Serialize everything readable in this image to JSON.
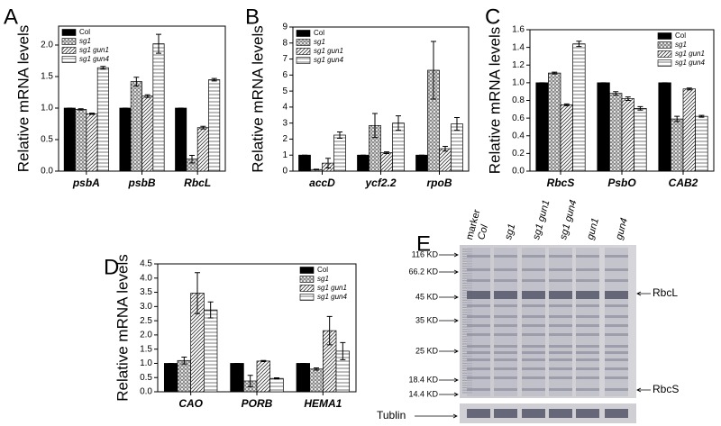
{
  "chart_data": [
    {
      "type": "bar",
      "panel_label": "A",
      "ylabel": "Relative mRNA levels",
      "legend": "upper left",
      "categories": [
        "psbA",
        "psbB",
        "RbcL"
      ],
      "series": [
        {
          "name": "Col",
          "color": "#000000",
          "pattern": "solid",
          "values": [
            1.0,
            1.0,
            1.0
          ],
          "errors": [
            0,
            0,
            0
          ]
        },
        {
          "name": "sg1",
          "color": "#7f7f7f",
          "pattern": "crosshatch",
          "values": [
            0.98,
            1.42,
            0.19
          ],
          "errors": [
            0.01,
            0.07,
            0.06
          ]
        },
        {
          "name": "sg1 gun1",
          "color": "#333333",
          "pattern": "diagonal",
          "values": [
            0.91,
            1.19,
            0.69
          ],
          "errors": [
            0.01,
            0.02,
            0.02
          ]
        },
        {
          "name": "sg1 gun4",
          "color": "#555555",
          "pattern": "horizontal",
          "values": [
            1.64,
            2.02,
            1.45
          ],
          "errors": [
            0.02,
            0.15,
            0.02
          ]
        }
      ],
      "ylim": [
        0,
        2.3
      ],
      "yticks": [
        {
          "value": 0,
          "label": "0.0"
        },
        {
          "value": 0.5,
          "label": "0.5"
        },
        {
          "value": 1,
          "label": "1.0"
        },
        {
          "value": 1.5,
          "label": "1.5"
        },
        {
          "value": 2,
          "label": "2.0"
        }
      ]
    },
    {
      "type": "bar",
      "panel_label": "B",
      "ylabel": "Relative mRNA levels",
      "legend": "upper left",
      "categories": [
        "accD",
        "ycf2.2",
        "rpoB"
      ],
      "series": [
        {
          "name": "Col",
          "color": "#000000",
          "pattern": "solid",
          "values": [
            1.0,
            1.0,
            1.0
          ],
          "errors": [
            0,
            0,
            0
          ]
        },
        {
          "name": "sg1",
          "color": "#7f7f7f",
          "pattern": "crosshatch",
          "values": [
            0.1,
            2.85,
            6.3
          ],
          "errors": [
            0.02,
            0.75,
            1.8
          ]
        },
        {
          "name": "sg1 gun1",
          "color": "#333333",
          "pattern": "diagonal",
          "values": [
            0.5,
            1.15,
            1.4
          ],
          "errors": [
            0.3,
            0.05,
            0.15
          ]
        },
        {
          "name": "sg1 gun4",
          "color": "#555555",
          "pattern": "horizontal",
          "values": [
            2.25,
            3.0,
            2.95
          ],
          "errors": [
            0.2,
            0.45,
            0.4
          ]
        }
      ],
      "ylim": [
        0,
        9
      ],
      "yticks": [
        0,
        1,
        2,
        3,
        4,
        5,
        6,
        7,
        8,
        9
      ]
    },
    {
      "type": "bar",
      "panel_label": "C",
      "ylabel": "Relative mRNA levels",
      "legend": "upper right",
      "categories": [
        "RbcS",
        "PsbO",
        "CAB2"
      ],
      "series": [
        {
          "name": "Col",
          "color": "#000000",
          "pattern": "solid",
          "values": [
            1.0,
            1.0,
            1.0
          ],
          "errors": [
            0,
            0,
            0
          ]
        },
        {
          "name": "sg1",
          "color": "#7f7f7f",
          "pattern": "crosshatch",
          "values": [
            1.11,
            0.88,
            0.59
          ],
          "errors": [
            0.01,
            0.02,
            0.03
          ]
        },
        {
          "name": "sg1 gun1",
          "color": "#333333",
          "pattern": "diagonal",
          "values": [
            0.75,
            0.82,
            0.93
          ],
          "errors": [
            0.01,
            0.02,
            0.01
          ]
        },
        {
          "name": "sg1 gun4",
          "color": "#555555",
          "pattern": "horizontal",
          "values": [
            1.44,
            0.71,
            0.62
          ],
          "errors": [
            0.03,
            0.02,
            0.01
          ]
        }
      ],
      "ylim": [
        0,
        1.6
      ],
      "yticks": [
        {
          "value": 0,
          "label": "0.0"
        },
        0.2,
        0.4,
        0.6,
        0.8,
        {
          "value": 1,
          "label": "1.0"
        },
        1.2,
        1.4,
        1.6
      ]
    },
    {
      "type": "bar",
      "panel_label": "D",
      "ylabel": "Relative mRNA levels",
      "legend": "upper right",
      "categories": [
        "CAO",
        "PORB",
        "HEMA1"
      ],
      "series": [
        {
          "name": "Col",
          "color": "#000000",
          "pattern": "solid",
          "values": [
            1.0,
            1.0,
            1.0
          ],
          "errors": [
            0,
            0,
            0
          ]
        },
        {
          "name": "sg1",
          "color": "#7f7f7f",
          "pattern": "crosshatch",
          "values": [
            1.1,
            0.38,
            0.8
          ],
          "errors": [
            0.12,
            0.2,
            0.04
          ]
        },
        {
          "name": "sg1 gun1",
          "color": "#333333",
          "pattern": "diagonal",
          "values": [
            3.47,
            1.08,
            2.15
          ],
          "errors": [
            0.72,
            0.02,
            0.5
          ]
        },
        {
          "name": "sg1 gun4",
          "color": "#555555",
          "pattern": "horizontal",
          "values": [
            2.88,
            0.47,
            1.43
          ],
          "errors": [
            0.28,
            0.02,
            0.3
          ]
        }
      ],
      "ylim": [
        0,
        4.5
      ],
      "yticks": [
        {
          "value": 0,
          "label": "0.0"
        },
        0.5,
        {
          "value": 1,
          "label": "1.0"
        },
        1.5,
        {
          "value": 2,
          "label": "2.0"
        },
        2.5,
        {
          "value": 3,
          "label": "3.0"
        },
        3.5,
        {
          "value": 4,
          "label": "4.0"
        },
        4.5
      ]
    }
  ],
  "gel": {
    "panel_label": "E",
    "lanes": [
      "marker",
      "Col",
      "sg1",
      "sg1 gun1",
      "sg1 gun4",
      "gun1",
      "gun4"
    ],
    "sizes": [
      "116 KD",
      "66.2 KD",
      "45 KD",
      "35 KD",
      "25 KD",
      "18.4 KD",
      "14.4 KD"
    ],
    "bands": [
      "RbcL",
      "RbcS"
    ],
    "loading_control": "Tublin"
  }
}
